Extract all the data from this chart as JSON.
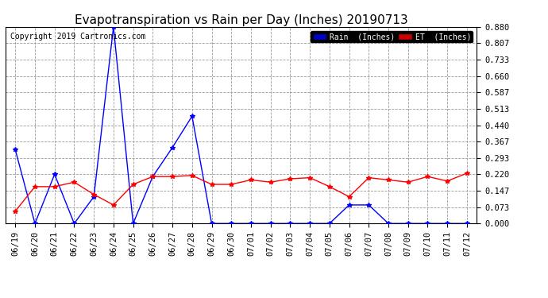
{
  "title": "Evapotranspiration vs Rain per Day (Inches) 20190713",
  "copyright": "Copyright 2019 Cartronics.com",
  "labels": [
    "06/19",
    "06/20",
    "06/21",
    "06/22",
    "06/23",
    "06/24",
    "06/25",
    "06/26",
    "06/27",
    "06/28",
    "06/29",
    "06/30",
    "07/01",
    "07/02",
    "07/03",
    "07/04",
    "07/05",
    "07/06",
    "07/07",
    "07/08",
    "07/09",
    "07/10",
    "07/11",
    "07/12"
  ],
  "rain": [
    0.33,
    0.0,
    0.22,
    0.0,
    0.12,
    0.88,
    0.0,
    0.21,
    0.34,
    0.48,
    0.0,
    0.0,
    0.0,
    0.0,
    0.0,
    0.0,
    0.0,
    0.083,
    0.083,
    0.0,
    0.0,
    0.0,
    0.0,
    0.0
  ],
  "et": [
    0.055,
    0.165,
    0.165,
    0.185,
    0.13,
    0.083,
    0.175,
    0.21,
    0.21,
    0.215,
    0.175,
    0.175,
    0.195,
    0.185,
    0.2,
    0.205,
    0.165,
    0.12,
    0.205,
    0.195,
    0.185,
    0.21,
    0.19,
    0.225
  ],
  "ylim": [
    0.0,
    0.88
  ],
  "yticks": [
    0.0,
    0.073,
    0.147,
    0.22,
    0.293,
    0.367,
    0.44,
    0.513,
    0.587,
    0.66,
    0.733,
    0.807,
    0.88
  ],
  "rain_color": "#0000ff",
  "et_color": "#ff0000",
  "background_color": "#ffffff",
  "grid_color": "#999999",
  "title_fontsize": 11,
  "copyright_fontsize": 7,
  "tick_fontsize": 7.5,
  "legend_rain_bg": "#0000cc",
  "legend_et_bg": "#cc0000",
  "legend_rain_label": "Rain  (Inches)",
  "legend_et_label": "ET  (Inches)"
}
